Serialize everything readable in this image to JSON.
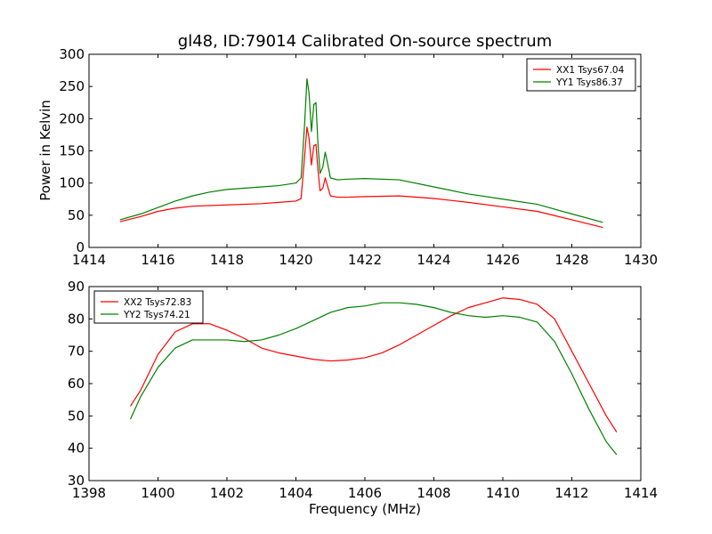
{
  "chart_data": [
    {
      "type": "line",
      "title": "gl48, ID:79014 Calibrated On-source spectrum",
      "xlabel": "",
      "ylabel": "Power in Kelvin",
      "xlim": [
        1414,
        1430
      ],
      "ylim": [
        0,
        300
      ],
      "xticks": [
        1414,
        1416,
        1418,
        1420,
        1422,
        1424,
        1426,
        1428,
        1430
      ],
      "yticks": [
        0,
        50,
        100,
        150,
        200,
        250,
        300
      ],
      "grid": false,
      "legend_position": "top-right",
      "series": [
        {
          "name": "XX1 Tsys67.04",
          "color": "#ff0000",
          "points": [
            [
              1414.9,
              40
            ],
            [
              1415.5,
              48
            ],
            [
              1416,
              56
            ],
            [
              1416.5,
              61
            ],
            [
              1417,
              64
            ],
            [
              1418,
              66
            ],
            [
              1419,
              68
            ],
            [
              1419.5,
              70
            ],
            [
              1420,
              72
            ],
            [
              1420.15,
              76
            ],
            [
              1420.25,
              140
            ],
            [
              1420.32,
              187
            ],
            [
              1420.38,
              170
            ],
            [
              1420.45,
              128
            ],
            [
              1420.52,
              158
            ],
            [
              1420.58,
              160
            ],
            [
              1420.64,
              120
            ],
            [
              1420.7,
              88
            ],
            [
              1420.78,
              92
            ],
            [
              1420.85,
              108
            ],
            [
              1420.92,
              95
            ],
            [
              1421.0,
              80
            ],
            [
              1421.2,
              78
            ],
            [
              1421.5,
              78
            ],
            [
              1422,
              79
            ],
            [
              1423,
              80
            ],
            [
              1424,
              76
            ],
            [
              1425,
              70
            ],
            [
              1426,
              63
            ],
            [
              1427,
              56
            ],
            [
              1428,
              43
            ],
            [
              1428.9,
              31
            ]
          ]
        },
        {
          "name": "YY1 Tsys86.37",
          "color": "#008000",
          "points": [
            [
              1414.9,
              43
            ],
            [
              1415.5,
              52
            ],
            [
              1416,
              62
            ],
            [
              1416.5,
              72
            ],
            [
              1417,
              80
            ],
            [
              1417.5,
              86
            ],
            [
              1418,
              90
            ],
            [
              1419,
              94
            ],
            [
              1419.5,
              96
            ],
            [
              1420,
              100
            ],
            [
              1420.15,
              108
            ],
            [
              1420.25,
              190
            ],
            [
              1420.32,
              262
            ],
            [
              1420.38,
              240
            ],
            [
              1420.45,
              180
            ],
            [
              1420.52,
              222
            ],
            [
              1420.58,
              225
            ],
            [
              1420.64,
              160
            ],
            [
              1420.7,
              115
            ],
            [
              1420.78,
              125
            ],
            [
              1420.85,
              148
            ],
            [
              1420.92,
              130
            ],
            [
              1421.0,
              108
            ],
            [
              1421.2,
              105
            ],
            [
              1421.5,
              106
            ],
            [
              1422,
              107
            ],
            [
              1423,
              105
            ],
            [
              1424,
              94
            ],
            [
              1425,
              83
            ],
            [
              1426,
              75
            ],
            [
              1427,
              67
            ],
            [
              1428,
              52
            ],
            [
              1428.9,
              39
            ]
          ]
        }
      ]
    },
    {
      "type": "line",
      "title": "",
      "xlabel": "Frequency (MHz)",
      "ylabel": "",
      "xlim": [
        1398,
        1414
      ],
      "ylim": [
        30,
        90
      ],
      "xticks": [
        1398,
        1400,
        1402,
        1404,
        1406,
        1408,
        1410,
        1412,
        1414
      ],
      "yticks": [
        30,
        40,
        50,
        60,
        70,
        80,
        90
      ],
      "grid": false,
      "legend_position": "top-left",
      "series": [
        {
          "name": "XX2 Tsys72.83",
          "color": "#ff0000",
          "points": [
            [
              1399.2,
              53
            ],
            [
              1399.5,
              58
            ],
            [
              1400,
              69
            ],
            [
              1400.5,
              76
            ],
            [
              1401,
              78.5
            ],
            [
              1401.5,
              78.5
            ],
            [
              1402,
              76.5
            ],
            [
              1402.5,
              74
            ],
            [
              1403,
              71
            ],
            [
              1403.5,
              69.5
            ],
            [
              1404,
              68.5
            ],
            [
              1404.5,
              67.5
            ],
            [
              1405,
              67
            ],
            [
              1405.5,
              67.3
            ],
            [
              1406,
              68
            ],
            [
              1406.5,
              69.5
            ],
            [
              1407,
              72
            ],
            [
              1407.5,
              75
            ],
            [
              1408,
              78
            ],
            [
              1408.5,
              81
            ],
            [
              1409,
              83.5
            ],
            [
              1409.5,
              85
            ],
            [
              1410,
              86.5
            ],
            [
              1410.5,
              86
            ],
            [
              1411,
              84.5
            ],
            [
              1411.5,
              80
            ],
            [
              1412,
              70
            ],
            [
              1412.5,
              60
            ],
            [
              1413,
              50
            ],
            [
              1413.3,
              45
            ]
          ]
        },
        {
          "name": "YY2 Tsys74.21",
          "color": "#008000",
          "points": [
            [
              1399.2,
              49
            ],
            [
              1399.5,
              56
            ],
            [
              1400,
              65
            ],
            [
              1400.5,
              71
            ],
            [
              1401,
              73.5
            ],
            [
              1401.5,
              73.5
            ],
            [
              1402,
              73.5
            ],
            [
              1402.5,
              73
            ],
            [
              1403,
              73.5
            ],
            [
              1403.5,
              75
            ],
            [
              1404,
              77
            ],
            [
              1404.5,
              79.5
            ],
            [
              1405,
              82
            ],
            [
              1405.5,
              83.5
            ],
            [
              1406,
              84
            ],
            [
              1406.5,
              85
            ],
            [
              1407,
              85
            ],
            [
              1407.5,
              84.5
            ],
            [
              1408,
              83.5
            ],
            [
              1408.5,
              82
            ],
            [
              1409,
              81
            ],
            [
              1409.5,
              80.5
            ],
            [
              1410,
              81
            ],
            [
              1410.5,
              80.5
            ],
            [
              1411,
              79
            ],
            [
              1411.5,
              73
            ],
            [
              1412,
              63
            ],
            [
              1412.5,
              52
            ],
            [
              1413,
              42
            ],
            [
              1413.3,
              38
            ]
          ]
        }
      ]
    }
  ]
}
